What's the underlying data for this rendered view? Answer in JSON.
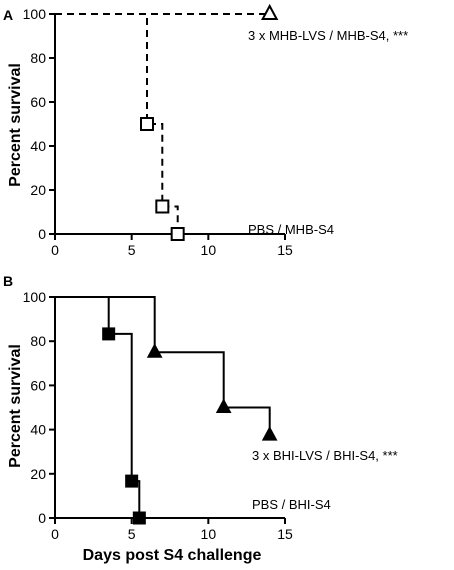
{
  "chart_data": [
    {
      "panel": "A",
      "type": "line",
      "subtype": "kaplan-meier",
      "title": "",
      "xlabel": "",
      "ylabel": "Percent survival",
      "xlim": [
        0,
        15
      ],
      "ylim": [
        0,
        100
      ],
      "xticks": [
        0,
        5,
        10,
        15
      ],
      "yticks": [
        0,
        20,
        40,
        60,
        80,
        100
      ],
      "grid": false,
      "series": [
        {
          "name": "3 x MHB-LVS / MHB-S4, ***",
          "line_style": "dashed",
          "marker": "open-triangle",
          "steps": [
            [
              0,
              100
            ],
            [
              14,
              100
            ]
          ],
          "markers": [
            [
              14,
              100
            ]
          ]
        },
        {
          "name": "PBS / MHB-S4",
          "line_style": "dashed",
          "marker": "open-square",
          "steps": [
            [
              0,
              100
            ],
            [
              6,
              100
            ],
            [
              6,
              50
            ],
            [
              7,
              50
            ],
            [
              7,
              12.5
            ],
            [
              8,
              12.5
            ],
            [
              8,
              0
            ]
          ],
          "markers": [
            [
              6,
              50
            ],
            [
              7,
              12.5
            ],
            [
              8,
              0
            ]
          ]
        }
      ]
    },
    {
      "panel": "B",
      "type": "line",
      "subtype": "kaplan-meier",
      "title": "",
      "xlabel": "Days post S4 challenge",
      "ylabel": "Percent survival",
      "xlim": [
        0,
        15
      ],
      "ylim": [
        0,
        100
      ],
      "xticks": [
        0,
        5,
        10,
        15
      ],
      "yticks": [
        0,
        20,
        40,
        60,
        80,
        100
      ],
      "grid": false,
      "series": [
        {
          "name": "3 x BHI-LVS / BHI-S4, ***",
          "line_style": "solid",
          "marker": "filled-triangle",
          "steps": [
            [
              0,
              100
            ],
            [
              6.5,
              100
            ],
            [
              6.5,
              75
            ],
            [
              11,
              75
            ],
            [
              11,
              50
            ],
            [
              14,
              50
            ],
            [
              14,
              37.5
            ]
          ],
          "markers": [
            [
              6.5,
              75
            ],
            [
              11,
              50
            ],
            [
              14,
              37.5
            ]
          ]
        },
        {
          "name": "PBS / BHI-S4",
          "line_style": "solid",
          "marker": "filled-square",
          "steps": [
            [
              0,
              100
            ],
            [
              3.5,
              100
            ],
            [
              3.5,
              83.3
            ],
            [
              5,
              83.3
            ],
            [
              5,
              16.7
            ],
            [
              5.5,
              16.7
            ],
            [
              5.5,
              0
            ]
          ],
          "markers": [
            [
              3.5,
              83.3
            ],
            [
              5,
              16.7
            ],
            [
              5.5,
              0
            ]
          ]
        }
      ]
    }
  ]
}
